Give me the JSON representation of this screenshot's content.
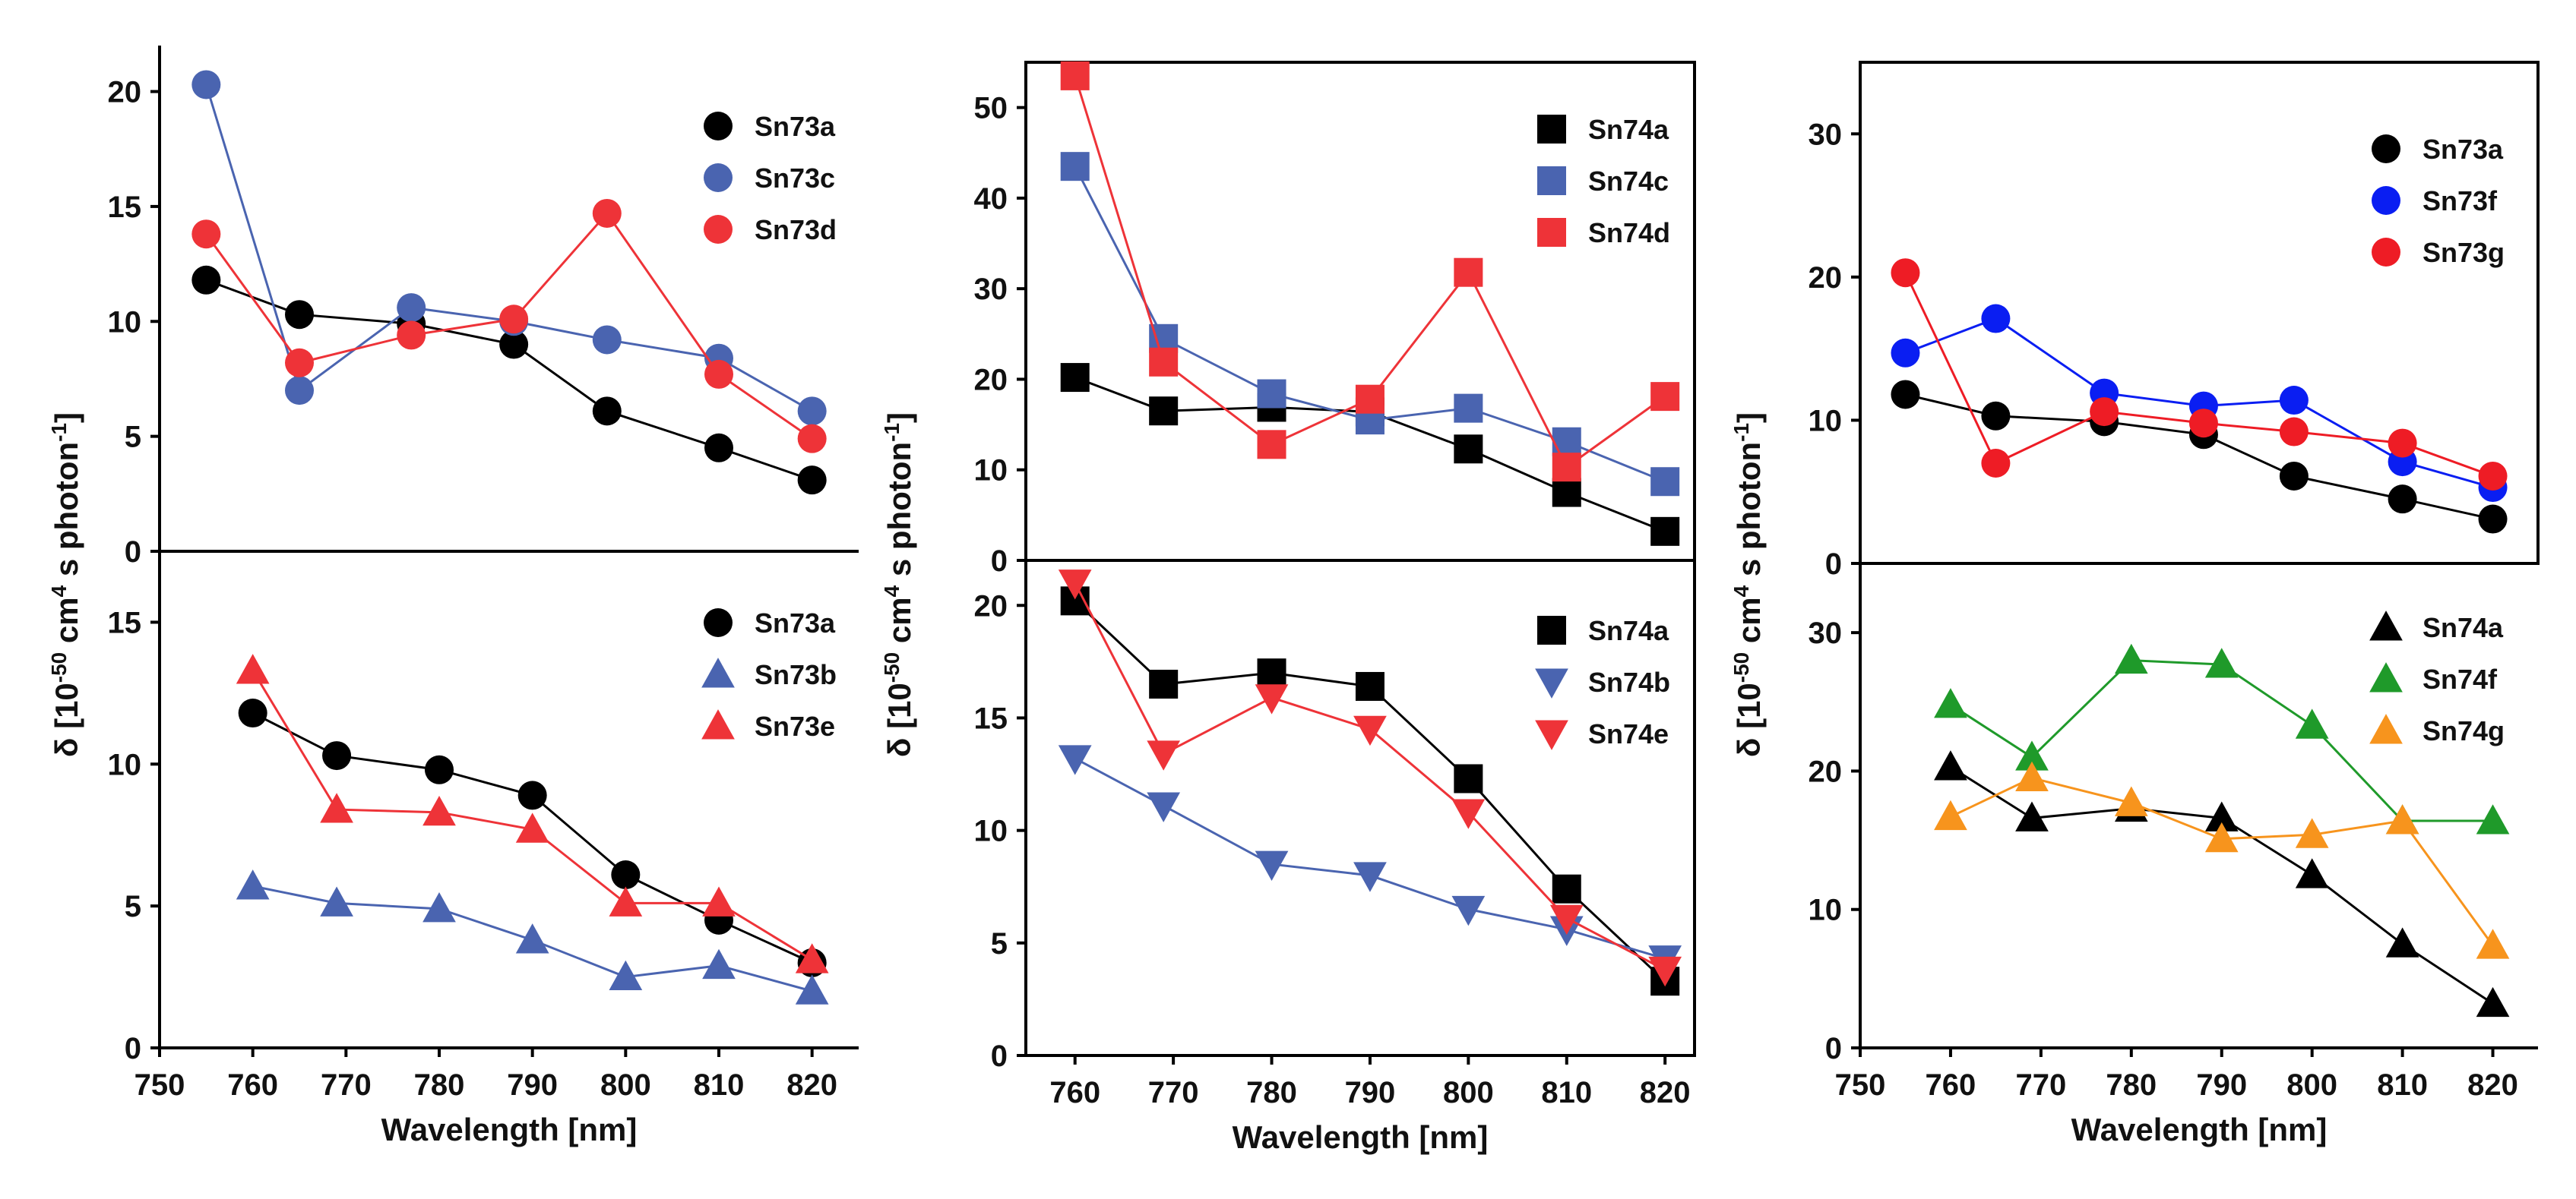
{
  "chart_data": [
    {
      "id": "p1",
      "type": "line",
      "xlim": [
        750,
        825
      ],
      "ylim": [
        0,
        22
      ],
      "yticks": [
        0,
        5,
        10,
        15,
        20
      ],
      "xticks": [],
      "xlabel": "",
      "ylabel": "",
      "series": [
        {
          "name": "Sn73a",
          "color": "#000000",
          "marker": "circle",
          "x": [
            755,
            765,
            777,
            788,
            798,
            810,
            820
          ],
          "y": [
            11.8,
            10.3,
            9.9,
            9.0,
            6.1,
            4.5,
            3.1
          ]
        },
        {
          "name": "Sn73c",
          "color": "#4a64b0",
          "marker": "circle",
          "x": [
            755,
            765,
            777,
            788,
            798,
            810,
            820
          ],
          "y": [
            20.3,
            7.0,
            10.6,
            10.0,
            9.2,
            8.4,
            6.1
          ]
        },
        {
          "name": "Sn73d",
          "color": "#ee3338",
          "marker": "circle",
          "x": [
            755,
            765,
            777,
            788,
            798,
            810,
            820
          ],
          "y": [
            13.8,
            8.2,
            9.4,
            10.1,
            14.7,
            7.7,
            4.9
          ]
        }
      ]
    },
    {
      "id": "p2",
      "type": "line",
      "xlim": [
        750,
        825
      ],
      "ylim": [
        0,
        17.5
      ],
      "yticks": [
        0,
        5,
        10,
        15
      ],
      "xticks": [
        750,
        760,
        770,
        780,
        790,
        800,
        810,
        820
      ],
      "xlabel": "Wavelength [nm]",
      "ylabel": "",
      "series": [
        {
          "name": "Sn73a",
          "color": "#000000",
          "marker": "circle",
          "x": [
            760,
            769,
            780,
            790,
            800,
            810,
            820
          ],
          "y": [
            11.8,
            10.3,
            9.8,
            8.9,
            6.1,
            4.5,
            3.0
          ]
        },
        {
          "name": "Sn73b",
          "color": "#4a64b0",
          "marker": "triangle",
          "x": [
            760,
            769,
            780,
            790,
            800,
            810,
            820
          ],
          "y": [
            5.7,
            5.1,
            4.9,
            3.8,
            2.5,
            2.9,
            2.0
          ]
        },
        {
          "name": "Sn73e",
          "color": "#ee3338",
          "marker": "triangle",
          "x": [
            760,
            769,
            780,
            790,
            800,
            810,
            820
          ],
          "y": [
            13.3,
            8.4,
            8.3,
            7.7,
            5.1,
            5.1,
            3.1
          ]
        }
      ]
    },
    {
      "id": "p3",
      "type": "line",
      "xlim": [
        755,
        823
      ],
      "ylim": [
        0,
        55
      ],
      "yticks": [
        0,
        10,
        20,
        30,
        40,
        50
      ],
      "xticks": [],
      "xlabel": "",
      "ylabel": "",
      "series": [
        {
          "name": "Sn74a",
          "color": "#000000",
          "marker": "square",
          "x": [
            760,
            769,
            780,
            790,
            800,
            810,
            820
          ],
          "y": [
            20.2,
            16.5,
            16.9,
            16.4,
            12.3,
            7.5,
            3.2
          ]
        },
        {
          "name": "Sn74c",
          "color": "#4a64b0",
          "marker": "square",
          "x": [
            760,
            769,
            780,
            790,
            800,
            810,
            820
          ],
          "y": [
            43.5,
            24.5,
            18.4,
            15.5,
            16.8,
            13.1,
            8.7
          ]
        },
        {
          "name": "Sn74d",
          "color": "#ee3338",
          "marker": "square",
          "x": [
            760,
            769,
            780,
            790,
            800,
            810,
            820
          ],
          "y": [
            53.5,
            21.9,
            12.8,
            17.8,
            31.8,
            10.3,
            18.1
          ]
        }
      ]
    },
    {
      "id": "p4",
      "type": "line",
      "xlim": [
        755,
        823
      ],
      "ylim": [
        0,
        22
      ],
      "yticks": [
        0,
        5,
        10,
        15,
        20
      ],
      "xticks": [
        760,
        770,
        780,
        790,
        800,
        810,
        820
      ],
      "xlabel": "Wavelength [nm]",
      "ylabel": "",
      "series": [
        {
          "name": "Sn74a",
          "color": "#000000",
          "marker": "square",
          "x": [
            760,
            769,
            780,
            790,
            800,
            810,
            820
          ],
          "y": [
            20.2,
            16.5,
            17.0,
            16.4,
            12.3,
            7.4,
            3.3
          ]
        },
        {
          "name": "Sn74b",
          "color": "#4a64b0",
          "marker": "triangle-down",
          "x": [
            760,
            769,
            780,
            790,
            800,
            810,
            820
          ],
          "y": [
            13.2,
            11.1,
            8.5,
            8.0,
            6.5,
            5.6,
            4.3
          ]
        },
        {
          "name": "Sn74e",
          "color": "#ee3338",
          "marker": "triangle-down",
          "x": [
            760,
            769,
            780,
            790,
            800,
            810,
            820
          ],
          "y": [
            21.0,
            13.4,
            15.9,
            14.5,
            10.8,
            6.1,
            3.8
          ]
        }
      ]
    },
    {
      "id": "p5",
      "type": "line",
      "xlim": [
        750,
        825
      ],
      "ylim": [
        0,
        35
      ],
      "yticks": [
        0,
        10,
        20,
        30
      ],
      "xticks": [],
      "xlabel": "",
      "ylabel": "",
      "series": [
        {
          "name": "Sn73a",
          "color": "#000000",
          "marker": "circle",
          "x": [
            755,
            765,
            777,
            788,
            798,
            810,
            820
          ],
          "y": [
            11.8,
            10.3,
            9.9,
            9.0,
            6.1,
            4.5,
            3.1
          ]
        },
        {
          "name": "Sn73f",
          "color": "#0a1ef2",
          "marker": "circle",
          "x": [
            755,
            765,
            777,
            788,
            798,
            810,
            820
          ],
          "y": [
            14.7,
            17.1,
            11.9,
            11.0,
            11.4,
            7.1,
            5.3
          ]
        },
        {
          "name": "Sn73g",
          "color": "#ee1c25",
          "marker": "circle",
          "x": [
            755,
            765,
            777,
            788,
            798,
            810,
            820
          ],
          "y": [
            20.3,
            7.0,
            10.6,
            9.8,
            9.2,
            8.4,
            6.1
          ]
        }
      ]
    },
    {
      "id": "p6",
      "type": "line",
      "xlim": [
        750,
        825
      ],
      "ylim": [
        0,
        35
      ],
      "yticks": [
        0,
        10,
        20,
        30
      ],
      "xticks": [
        750,
        760,
        770,
        780,
        790,
        800,
        810,
        820
      ],
      "xlabel": "Wavelength [nm]",
      "ylabel": "",
      "series": [
        {
          "name": "Sn74a",
          "color": "#000000",
          "marker": "triangle",
          "x": [
            760,
            769,
            780,
            790,
            800,
            810,
            820
          ],
          "y": [
            20.3,
            16.6,
            17.3,
            16.6,
            12.5,
            7.5,
            3.2
          ]
        },
        {
          "name": "Sn74f",
          "color": "#1f9a2a",
          "marker": "triangle",
          "x": [
            760,
            769,
            780,
            790,
            800,
            810,
            820
          ],
          "y": [
            24.8,
            21.0,
            28.0,
            27.7,
            23.3,
            16.4,
            16.4
          ]
        },
        {
          "name": "Sn74g",
          "color": "#f7941d",
          "marker": "triangle",
          "x": [
            760,
            769,
            780,
            790,
            800,
            810,
            820
          ],
          "y": [
            16.7,
            19.5,
            17.7,
            15.1,
            15.4,
            16.4,
            7.4
          ]
        }
      ]
    }
  ],
  "y_axis_title_prefix": "δ [10",
  "y_axis_title_exp1": "-50",
  "y_axis_title_mid": " cm",
  "y_axis_title_exp2": "4",
  "y_axis_title_mid2": " s photon",
  "y_axis_title_exp3": "-1",
  "y_axis_title_suffix": "]"
}
